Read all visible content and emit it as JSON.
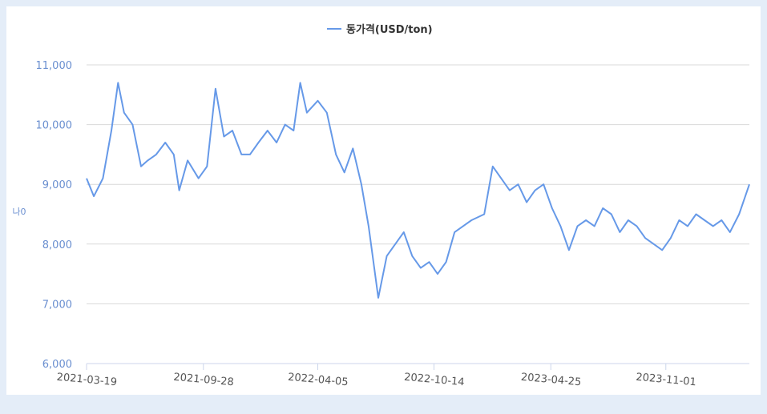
{
  "chart_data": {
    "type": "line",
    "y_label": "나0",
    "x": [
      "2021-03-19",
      "2021-03-31",
      "2021-04-15",
      "2021-04-29",
      "2021-05-10",
      "2021-05-20",
      "2021-06-03",
      "2021-06-17",
      "2021-06-28",
      "2021-07-12",
      "2021-07-27",
      "2021-08-10",
      "2021-08-19",
      "2021-09-02",
      "2021-09-20",
      "2021-10-04",
      "2021-10-18",
      "2021-11-01",
      "2021-11-15",
      "2021-11-30",
      "2021-12-14",
      "2021-12-28",
      "2022-01-12",
      "2022-01-27",
      "2022-02-10",
      "2022-02-24",
      "2022-03-07",
      "2022-03-18",
      "2022-04-05",
      "2022-04-20",
      "2022-05-05",
      "2022-05-19",
      "2022-06-02",
      "2022-06-16",
      "2022-06-28",
      "2022-07-14",
      "2022-07-28",
      "2022-08-11",
      "2022-08-25",
      "2022-09-08",
      "2022-09-22",
      "2022-10-06",
      "2022-10-20",
      "2022-11-03",
      "2022-11-17",
      "2022-12-01",
      "2022-12-15",
      "2023-01-05",
      "2023-01-19",
      "2023-02-02",
      "2023-02-16",
      "2023-03-02",
      "2023-03-16",
      "2023-03-30",
      "2023-04-13",
      "2023-04-27",
      "2023-05-11",
      "2023-05-25",
      "2023-06-08",
      "2023-06-22",
      "2023-07-06",
      "2023-07-20",
      "2023-08-03",
      "2023-08-17",
      "2023-08-31",
      "2023-09-14",
      "2023-09-28",
      "2023-10-12",
      "2023-10-26",
      "2023-11-09",
      "2023-11-23",
      "2023-12-07",
      "2023-12-21",
      "2024-01-04",
      "2024-01-18",
      "2024-02-01",
      "2024-02-15",
      "2024-03-01",
      "2024-03-18"
    ],
    "series": [
      {
        "name": "동가격(USD/ton)",
        "color": "#6699e8",
        "values": [
          9100,
          8800,
          9100,
          9900,
          10700,
          10200,
          10000,
          9300,
          9400,
          9500,
          9700,
          9500,
          8900,
          9400,
          9100,
          9300,
          10600,
          9800,
          9900,
          9500,
          9500,
          9700,
          9900,
          9700,
          10000,
          9900,
          10700,
          10200,
          10400,
          10200,
          9500,
          9200,
          9600,
          9000,
          8300,
          7100,
          7800,
          8000,
          8200,
          7800,
          7600,
          7700,
          7500,
          7700,
          8200,
          8300,
          8400,
          8500,
          9300,
          9100,
          8900,
          9000,
          8700,
          8900,
          9000,
          8600,
          8300,
          7900,
          8300,
          8400,
          8300,
          8600,
          8500,
          8200,
          8400,
          8300,
          8100,
          8000,
          7900,
          8100,
          8400,
          8300,
          8500,
          8400,
          8300,
          8400,
          8200,
          8500,
          9000
        ]
      }
    ],
    "xlim": [
      "2021-03-19",
      "2024-03-18"
    ],
    "xticks": [
      "2021-03-19",
      "2021-09-28",
      "2022-04-05",
      "2022-10-14",
      "2023-04-25",
      "2023-11-01"
    ],
    "ylim": [
      6000,
      11000
    ],
    "yticks": [
      {
        "value": 6000,
        "label": "6,000"
      },
      {
        "value": 7000,
        "label": "7,000"
      },
      {
        "value": 8000,
        "label": "8,000"
      },
      {
        "value": 9000,
        "label": "9,000"
      },
      {
        "value": 10000,
        "label": "10,000"
      },
      {
        "value": 11000,
        "label": "11,000"
      }
    ],
    "grid": true
  }
}
